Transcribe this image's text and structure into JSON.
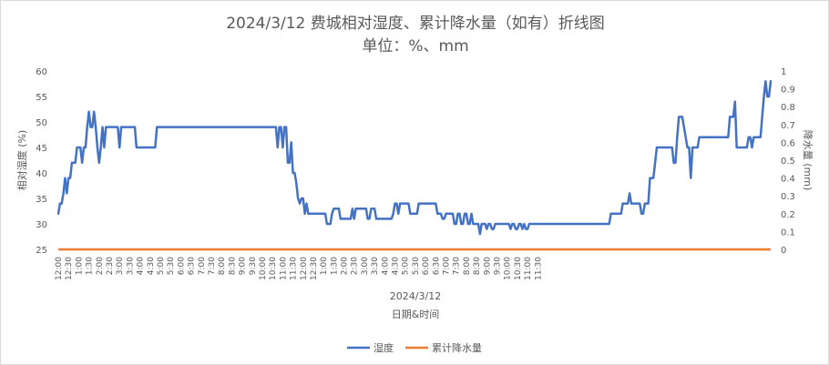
{
  "chart_data": {
    "type": "line",
    "title": "2024/3/12 费城相对湿度、累计降水量（如有）折线图",
    "subtitle": "单位：%、mm",
    "xlabel": "日期&时间",
    "x_group_label": "2024/3/12",
    "ylabel": "相对湿度 (%)",
    "y2label": "降水量 (mm)",
    "ylim": [
      25,
      60
    ],
    "yticks": [
      25,
      30,
      35,
      40,
      45,
      50,
      55,
      60
    ],
    "y2lim": [
      0,
      1
    ],
    "y2ticks": [
      0,
      0.1,
      0.2,
      0.3,
      0.4,
      0.5,
      0.6,
      0.7,
      0.8,
      0.9,
      1
    ],
    "x_start": "12:00",
    "x_step_minutes": 5,
    "x_tick_labels": [
      "12:00",
      "12:30",
      "1:00",
      "1:30",
      "2:00",
      "2:30",
      "3:00",
      "3:30",
      "4:00",
      "4:30",
      "5:00",
      "5:30",
      "6:00",
      "6:30",
      "7:00",
      "7:30",
      "8:00",
      "8:30",
      "9:00",
      "9:30",
      "10:00",
      "10:30",
      "11:00",
      "11:30",
      "12:00",
      "12:30",
      "1:00",
      "1:30",
      "2:00",
      "2:30",
      "3:00",
      "3:30",
      "4:00",
      "4:30",
      "5:00",
      "5:30",
      "6:00",
      "6:30",
      "7:00",
      "7:30",
      "8:00",
      "8:30",
      "9:00",
      "9:30",
      "10:00",
      "10:30",
      "11:00",
      "11:30"
    ],
    "grid": false,
    "legend_position": "bottom",
    "series": [
      {
        "name": "湿度",
        "axis": "left",
        "color": "#4472c4",
        "values": [
          32,
          34,
          34,
          36,
          39,
          36,
          39,
          39,
          42,
          42,
          42,
          45,
          45,
          45,
          42,
          45,
          45,
          49,
          52,
          49,
          49,
          52,
          49,
          45,
          42,
          45,
          49,
          45,
          49,
          49,
          49,
          49,
          49,
          49,
          49,
          49,
          45,
          49,
          49,
          49,
          49,
          49,
          49,
          49,
          49,
          49,
          45,
          45,
          45,
          45,
          45,
          45,
          45,
          45,
          45,
          45,
          45,
          45,
          49,
          49,
          49,
          49,
          49,
          49,
          49,
          49,
          49,
          49,
          49,
          49,
          49,
          49,
          49,
          49,
          49,
          49,
          49,
          49,
          49,
          49,
          49,
          49,
          49,
          49,
          49,
          49,
          49,
          49,
          49,
          49,
          49,
          49,
          49,
          49,
          49,
          49,
          49,
          49,
          49,
          49,
          49,
          49,
          49,
          49,
          49,
          49,
          49,
          49,
          49,
          49,
          49,
          49,
          49,
          49,
          49,
          49,
          49,
          49,
          49,
          49,
          49,
          49,
          49,
          49,
          49,
          49,
          49,
          49,
          49,
          45,
          49,
          49,
          45,
          49,
          49,
          42,
          42,
          46,
          40,
          40,
          38,
          35,
          34,
          35,
          35,
          32,
          34,
          32,
          32,
          32,
          32,
          32,
          32,
          32,
          32,
          32,
          32,
          32,
          30,
          30,
          30,
          32,
          33,
          33,
          33,
          33,
          31,
          31,
          31,
          31,
          31,
          31,
          31,
          33,
          31,
          33,
          33,
          33,
          33,
          33,
          33,
          33,
          31,
          31,
          33,
          33,
          33,
          31,
          31,
          31,
          31,
          31,
          31,
          31,
          31,
          31,
          31,
          32,
          34,
          34,
          32,
          34,
          34,
          34,
          34,
          34,
          34,
          32,
          32,
          32,
          32,
          32,
          34,
          34,
          34,
          34,
          34,
          34,
          34,
          34,
          34,
          34,
          34,
          32,
          32,
          32,
          31,
          31,
          32,
          32,
          32,
          32,
          32,
          30,
          30,
          32,
          32,
          30,
          30,
          32,
          32,
          30,
          30,
          32,
          30,
          30,
          30,
          30,
          28,
          30,
          30,
          30,
          29,
          30,
          30,
          29,
          29,
          30,
          30,
          30,
          30,
          30,
          30,
          30,
          30,
          30,
          29,
          30,
          30,
          29,
          29,
          30,
          30,
          29,
          30,
          29,
          29,
          30,
          30,
          30,
          30,
          30,
          30,
          30,
          30,
          30,
          30,
          30,
          30,
          30,
          30,
          30,
          30,
          30,
          30,
          30,
          30,
          30,
          30,
          30,
          30,
          30,
          30,
          30,
          30,
          30,
          30,
          30,
          30,
          30,
          30,
          30,
          30,
          30,
          30,
          30,
          30,
          30,
          30,
          30,
          30,
          30,
          30,
          30,
          30,
          32,
          32,
          32,
          32,
          32,
          32,
          32,
          34,
          34,
          34,
          34,
          36,
          34,
          34,
          34,
          34,
          34,
          34,
          32,
          32,
          34,
          34,
          34,
          39,
          39,
          39,
          42,
          45,
          45,
          45,
          45,
          45,
          45,
          45,
          45,
          45,
          45,
          42,
          42,
          47,
          51,
          51,
          51,
          49,
          47,
          45,
          45,
          39,
          45,
          45,
          45,
          45,
          47,
          47,
          47,
          47,
          47,
          47,
          47,
          47,
          47,
          47,
          47,
          47,
          47,
          47,
          47,
          47,
          47,
          47,
          51,
          51,
          51,
          54,
          45,
          45,
          45,
          45,
          45,
          45,
          45,
          47,
          47,
          45,
          47,
          47,
          47,
          47,
          47,
          51,
          55,
          58,
          55,
          55,
          58
        ]
      },
      {
        "name": "累计降水量",
        "axis": "right",
        "color": "#ed7d31",
        "values": [
          0,
          0
        ]
      }
    ]
  }
}
